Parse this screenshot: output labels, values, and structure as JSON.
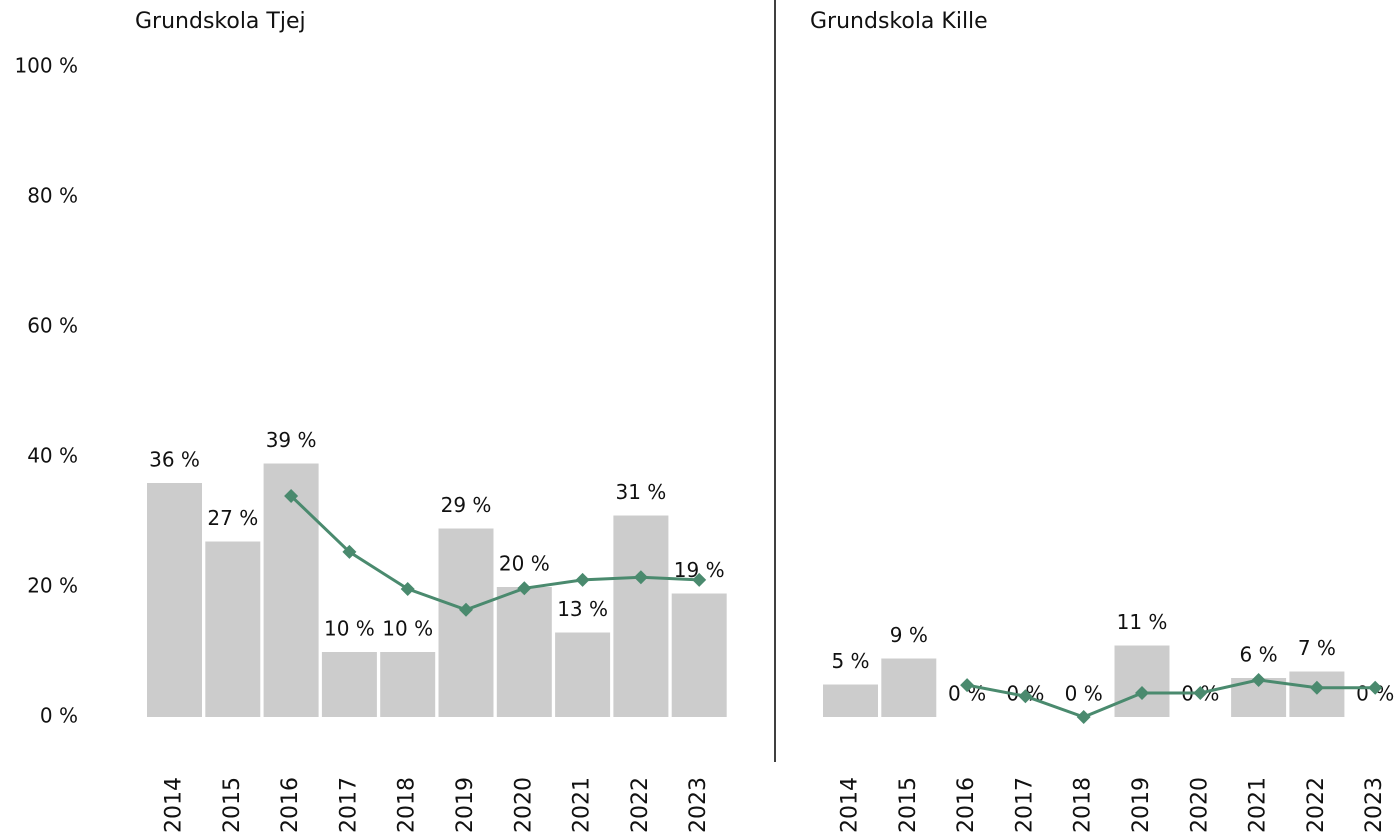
{
  "chart_data": [
    {
      "type": "bar",
      "title": "Grundskola Tjej",
      "categories": [
        "2014",
        "2015",
        "2016",
        "2017",
        "2018",
        "2019",
        "2020",
        "2021",
        "2022",
        "2023"
      ],
      "series": [
        {
          "type": "bar",
          "color": "#cccccc",
          "values": [
            36,
            27,
            39,
            10,
            10,
            29,
            20,
            13,
            31,
            19
          ],
          "value_labels": [
            "36 %",
            "27 %",
            "39 %",
            "10 %",
            "10 %",
            "29 %",
            "20 %",
            "13 %",
            "31 %",
            "19 %"
          ]
        },
        {
          "type": "line",
          "color": "#4a8a6e",
          "values": [
            null,
            null,
            34,
            25.4,
            19.7,
            16.5,
            19.8,
            21.1,
            21.5,
            21.1
          ]
        }
      ],
      "ylim": [
        0,
        100
      ],
      "yticks": [
        {
          "value": 0,
          "label": "0 %"
        },
        {
          "value": 20,
          "label": "20 %"
        },
        {
          "value": 40,
          "label": "40 %"
        },
        {
          "value": 60,
          "label": "60 %"
        },
        {
          "value": 80,
          "label": "80 %"
        },
        {
          "value": 100,
          "label": "100 %"
        }
      ]
    },
    {
      "type": "bar",
      "title": "Grundskola Kille",
      "categories": [
        "2014",
        "2015",
        "2016",
        "2017",
        "2018",
        "2019",
        "2020",
        "2021",
        "2022",
        "2023"
      ],
      "series": [
        {
          "type": "bar",
          "color": "#cccccc",
          "values": [
            5,
            9,
            0,
            0,
            0,
            11,
            0,
            6,
            7,
            0
          ],
          "value_labels": [
            "5 %",
            "9 %",
            "0 %",
            "0 %",
            "0 %",
            "11 %",
            "0 %",
            "6 %",
            "7 %",
            "0 %"
          ]
        },
        {
          "type": "line",
          "color": "#4a8a6e",
          "values": [
            null,
            null,
            4.9,
            3.2,
            0,
            3.7,
            3.7,
            5.7,
            4.5,
            4.5
          ]
        }
      ],
      "ylim": [
        0,
        100
      ]
    }
  ]
}
